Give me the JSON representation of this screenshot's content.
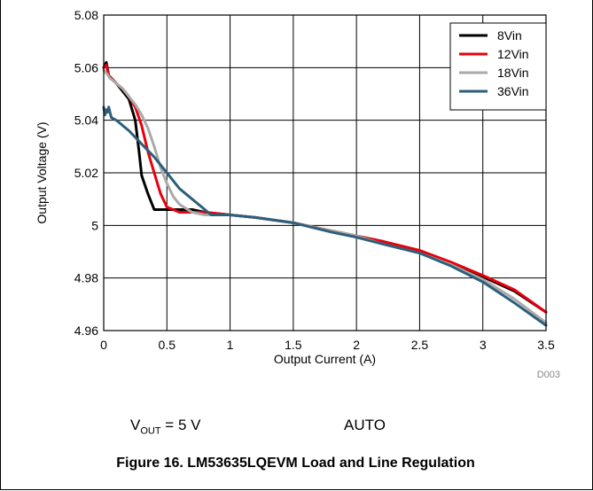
{
  "figure": {
    "caption": "Figure 16. LM53635LQEVM Load and Line Regulation",
    "code": "D003",
    "conditions": {
      "vout_symbol": "V",
      "vout_subscript": "OUT",
      "vout_value": " = 5 V",
      "mode": "AUTO"
    }
  },
  "chart_data": {
    "type": "line",
    "xlabel": "Output Current (A)",
    "ylabel": "Output Voltage (V)",
    "xlim": [
      0,
      3.5
    ],
    "ylim": [
      4.96,
      5.08
    ],
    "xticks": [
      0,
      0.5,
      1,
      1.5,
      2,
      2.5,
      3,
      3.5
    ],
    "xtick_labels": [
      "0",
      "0.5",
      "1",
      "1.5",
      "2",
      "2.5",
      "3",
      "3.5"
    ],
    "yticks": [
      4.96,
      4.98,
      5,
      5.02,
      5.04,
      5.06,
      5.08
    ],
    "ytick_labels": [
      "4.96",
      "4.98",
      "5",
      "5.02",
      "5.04",
      "5.06",
      "5.08"
    ],
    "grid": true,
    "legend_position": "top-right",
    "series": [
      {
        "name": "8Vin",
        "color": "#000000",
        "x": [
          0.0,
          0.02,
          0.04,
          0.06,
          0.1,
          0.15,
          0.2,
          0.25,
          0.28,
          0.3,
          0.35,
          0.4,
          0.5,
          0.6,
          0.7,
          0.8,
          1.0,
          1.2,
          1.5,
          1.8,
          2.0,
          2.2,
          2.5,
          2.75,
          3.0,
          3.25,
          3.5
        ],
        "y": [
          5.06,
          5.062,
          5.057,
          5.056,
          5.054,
          5.051,
          5.048,
          5.04,
          5.028,
          5.019,
          5.012,
          5.006,
          5.006,
          5.006,
          5.006,
          5.005,
          5.004,
          5.003,
          5.001,
          4.998,
          4.996,
          4.994,
          4.99,
          4.9855,
          4.9805,
          4.975,
          4.967
        ]
      },
      {
        "name": "12Vin",
        "color": "#e8000b",
        "x": [
          0.0,
          0.02,
          0.04,
          0.06,
          0.1,
          0.15,
          0.2,
          0.25,
          0.3,
          0.35,
          0.4,
          0.45,
          0.5,
          0.55,
          0.6,
          0.7,
          0.8,
          1.0,
          1.2,
          1.5,
          1.8,
          2.0,
          2.2,
          2.5,
          2.75,
          3.0,
          3.25,
          3.5
        ],
        "y": [
          5.06,
          5.061,
          5.057,
          5.056,
          5.054,
          5.052,
          5.049,
          5.045,
          5.038,
          5.028,
          5.02,
          5.012,
          5.007,
          5.006,
          5.005,
          5.005,
          5.005,
          5.004,
          5.003,
          5.001,
          4.998,
          4.996,
          4.994,
          4.9905,
          4.986,
          4.981,
          4.9755,
          4.967
        ]
      },
      {
        "name": "18Vin",
        "color": "#aaaaaa",
        "x": [
          0.0,
          0.02,
          0.05,
          0.1,
          0.15,
          0.2,
          0.25,
          0.3,
          0.35,
          0.4,
          0.45,
          0.5,
          0.55,
          0.6,
          0.7,
          0.8,
          0.85,
          1.0,
          1.2,
          1.5,
          1.8,
          2.0,
          2.2,
          2.5,
          2.75,
          3.0,
          3.25,
          3.5
        ],
        "y": [
          5.059,
          5.058,
          5.056,
          5.054,
          5.052,
          5.049,
          5.046,
          5.042,
          5.037,
          5.03,
          5.022,
          5.016,
          5.011,
          5.008,
          5.005,
          5.004,
          5.004,
          5.004,
          5.003,
          5.001,
          4.998,
          4.996,
          4.993,
          4.9895,
          4.985,
          4.9795,
          4.972,
          4.963
        ]
      },
      {
        "name": "36Vin",
        "color": "#2d5f7b",
        "x": [
          0.0,
          0.01,
          0.02,
          0.03,
          0.04,
          0.05,
          0.06,
          0.1,
          0.2,
          0.3,
          0.4,
          0.5,
          0.6,
          0.7,
          0.8,
          0.85,
          1.0,
          1.2,
          1.5,
          1.8,
          2.0,
          2.2,
          2.5,
          2.75,
          3.0,
          3.25,
          3.5
        ],
        "y": [
          5.045,
          5.042,
          5.044,
          5.043,
          5.045,
          5.043,
          5.041,
          5.04,
          5.036,
          5.031,
          5.026,
          5.02,
          5.014,
          5.01,
          5.006,
          5.004,
          5.004,
          5.003,
          5.001,
          4.9975,
          4.9955,
          4.993,
          4.9895,
          4.9845,
          4.9785,
          4.9705,
          4.962
        ]
      }
    ]
  }
}
